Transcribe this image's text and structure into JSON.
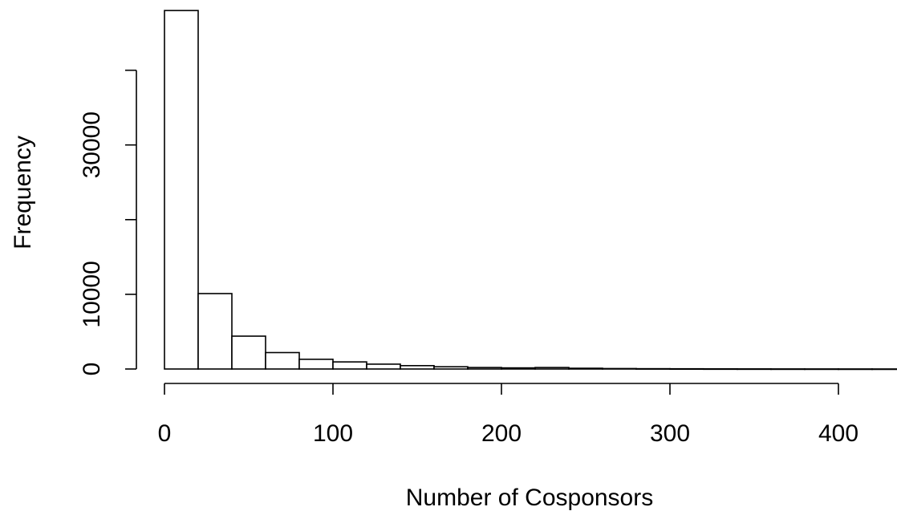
{
  "chart_data": {
    "type": "bar",
    "title": "",
    "xlabel": "Number of Cosponsors",
    "ylabel": "Frequency",
    "bin_edges": [
      0,
      20,
      40,
      60,
      80,
      100,
      120,
      140,
      160,
      180,
      200,
      220,
      240,
      260,
      280,
      300,
      320,
      340,
      360,
      380,
      400,
      420,
      440
    ],
    "values": [
      48000,
      10100,
      4400,
      2200,
      1300,
      950,
      650,
      450,
      300,
      200,
      150,
      200,
      100,
      60,
      40,
      30,
      20,
      15,
      10,
      8,
      5,
      3
    ],
    "xlim": [
      0,
      440
    ],
    "ylim": [
      0,
      48000
    ],
    "x_ticks": [
      0,
      100,
      200,
      300,
      400
    ],
    "y_ticks": [
      0,
      10000,
      20000,
      30000,
      40000
    ],
    "y_tick_labels": [
      "0",
      "10000",
      "",
      "30000",
      ""
    ],
    "grid": false,
    "legend": "none"
  }
}
